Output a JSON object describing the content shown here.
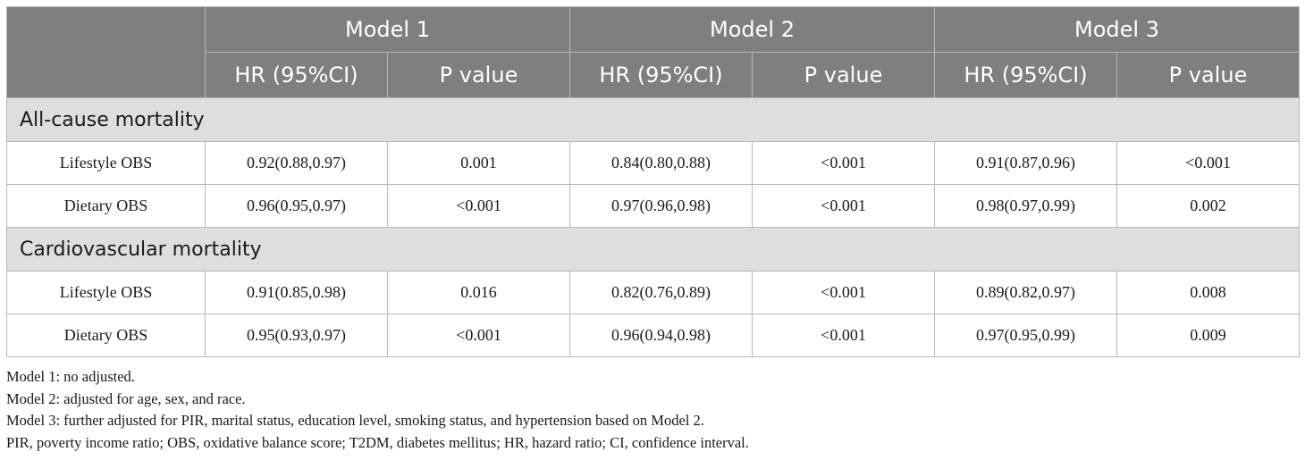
{
  "header": {
    "models": [
      "Model 1",
      "Model 2",
      "Model 3"
    ],
    "subheaders": [
      "HR (95%CI)",
      "P value",
      "HR (95%CI)",
      "P value",
      "HR (95%CI)",
      "P value"
    ]
  },
  "groups": [
    {
      "title": "All-cause mortality",
      "rows": [
        {
          "label": "Lifestyle OBS",
          "cells": [
            "0.92(0.88,0.97)",
            "0.001",
            "0.84(0.80,0.88)",
            "<0.001",
            "0.91(0.87,0.96)",
            "<0.001"
          ]
        },
        {
          "label": "Dietary OBS",
          "cells": [
            "0.96(0.95,0.97)",
            "<0.001",
            "0.97(0.96,0.98)",
            "<0.001",
            "0.98(0.97,0.99)",
            "0.002"
          ]
        }
      ]
    },
    {
      "title": "Cardiovascular mortality",
      "rows": [
        {
          "label": "Lifestyle OBS",
          "cells": [
            "0.91(0.85,0.98)",
            "0.016",
            "0.82(0.76,0.89)",
            "<0.001",
            "0.89(0.82,0.97)",
            "0.008"
          ]
        },
        {
          "label": "Dietary OBS",
          "cells": [
            "0.95(0.93,0.97)",
            "<0.001",
            "0.96(0.94,0.98)",
            "<0.001",
            "0.97(0.95,0.99)",
            "0.009"
          ]
        }
      ]
    }
  ],
  "footnotes": [
    "Model 1: no adjusted.",
    "Model 2: adjusted for age, sex, and race.",
    "Model 3: further adjusted for PIR, marital status, education level, smoking status, and hypertension based on Model 2.",
    "PIR, poverty income ratio; OBS, oxidative balance score; T2DM, diabetes mellitus; HR, hazard ratio; CI, confidence interval."
  ],
  "colors": {
    "header_bg": "#7f7f7f",
    "group_bg": "#dedede",
    "border": "#b8b8b8"
  }
}
